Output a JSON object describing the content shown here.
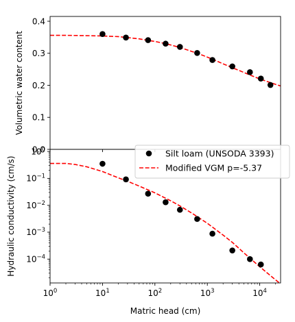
{
  "chart_data": [
    {
      "type": "scatter",
      "ylabel": "Volumetric water content",
      "xscale": "log",
      "xlim": [
        1,
        25000
      ],
      "ylim": [
        0,
        0.415
      ],
      "yticks": [
        0,
        0.1,
        0.2,
        0.3,
        0.4
      ],
      "ytick_labels": [
        "0.0",
        "0.1",
        "0.2",
        "0.3",
        "0.4"
      ],
      "series": [
        {
          "name": "Silt loam (UNSODA 3393)",
          "kind": "points",
          "color": "#000000",
          "x": [
            10,
            28,
            74,
            160,
            300,
            640,
            1250,
            3000,
            6500,
            10500,
            16000
          ],
          "y": [
            0.36,
            0.349,
            0.341,
            0.33,
            0.32,
            0.301,
            0.279,
            0.259,
            0.241,
            0.221,
            0.201
          ]
        },
        {
          "name": "Modified VGM p=-5.37",
          "kind": "line",
          "color": "#ff0000",
          "x": [
            1,
            2,
            5,
            10,
            20,
            30,
            50,
            75,
            100,
            150,
            200,
            300,
            500,
            750,
            1000,
            1500,
            2000,
            3000,
            5000,
            7500,
            10000,
            15000,
            20000,
            25000
          ],
          "y": [
            0.356,
            0.356,
            0.355,
            0.354,
            0.352,
            0.349,
            0.345,
            0.34,
            0.337,
            0.331,
            0.326,
            0.318,
            0.306,
            0.296,
            0.288,
            0.276,
            0.267,
            0.255,
            0.24,
            0.228,
            0.22,
            0.21,
            0.203,
            0.198
          ]
        }
      ]
    },
    {
      "type": "scatter",
      "xlabel": "Matric head (cm)",
      "ylabel": "Hydraulic conductivity (cm/s)",
      "xscale": "log",
      "yscale": "log",
      "xlim": [
        1,
        25000
      ],
      "ylim": [
        1.3e-05,
        1.2
      ],
      "xticks": [
        1,
        10,
        100,
        1000,
        10000
      ],
      "xtick_labels": [
        [
          "10",
          "0"
        ],
        [
          "10",
          "1"
        ],
        [
          "10",
          "2"
        ],
        [
          "10",
          "3"
        ],
        [
          "10",
          "4"
        ]
      ],
      "yticks": [
        0.0001,
        0.001,
        0.01,
        0.1,
        1
      ],
      "ytick_labels": [
        [
          "10",
          "−4"
        ],
        [
          "10",
          "−3"
        ],
        [
          "10",
          "−2"
        ],
        [
          "10",
          "−1"
        ],
        [
          "10",
          "0"
        ]
      ],
      "legend_location": "upper-right",
      "series": [
        {
          "name": "Silt loam (UNSODA 3393)",
          "kind": "points",
          "color": "#000000",
          "x": [
            10,
            28,
            74,
            160,
            300,
            640,
            1250,
            3000,
            6500,
            10500
          ],
          "y": [
            0.35,
            0.092,
            0.027,
            0.013,
            0.0068,
            0.0031,
            0.00088,
            0.00021,
            0.0001,
            6.3e-05
          ]
        },
        {
          "name": "Modified VGM p=-5.37",
          "kind": "line",
          "color": "#ff0000",
          "x": [
            1,
            2,
            3,
            5,
            10,
            20,
            30,
            50,
            100,
            200,
            300,
            500,
            1000,
            2000,
            3000,
            5000,
            10000,
            15000,
            20000,
            25000
          ],
          "y": [
            0.36,
            0.36,
            0.33,
            0.27,
            0.18,
            0.105,
            0.078,
            0.052,
            0.029,
            0.0147,
            0.0095,
            0.0052,
            0.00215,
            0.00078,
            0.00042,
            0.00017,
            5.2e-05,
            2.7e-05,
            1.7e-05,
            1.2e-05
          ]
        }
      ]
    }
  ]
}
